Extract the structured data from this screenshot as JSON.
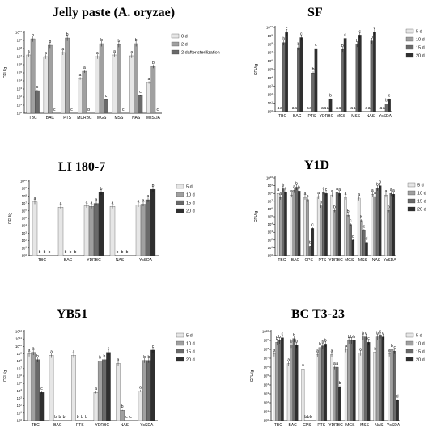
{
  "colors": {
    "d0": "#e6e6e6",
    "d1": "#a0a0a0",
    "d2": "#6a6a6a",
    "d3": "#2f2f2f",
    "axis": "#000000"
  },
  "chart_data": [
    {
      "type": "bar",
      "title": "Jelly paste (A. oryzae)",
      "ylabel": "CFU/g",
      "log_scale": true,
      "ylim_log10": [
        0,
        10
      ],
      "categories": [
        "TBC",
        "BAC",
        "PTS",
        "MDRBC",
        "MGS",
        "MSS",
        "NAS",
        "MsSDA"
      ],
      "legend": [
        "0 d",
        "2 d",
        "2 dafter sterilization"
      ],
      "values_log10": [
        [
          7.2,
          9.2,
          2.8
        ],
        [
          7.0,
          8.4,
          0.0
        ],
        [
          7.5,
          9.3,
          0.0
        ],
        [
          4.3,
          5.2,
          0.0
        ],
        [
          7.0,
          8.6,
          1.7
        ],
        [
          7.2,
          8.5,
          0.0
        ],
        [
          7.1,
          8.6,
          2.2
        ],
        [
          3.8,
          5.8,
          0.0
        ]
      ],
      "letters": [
        [
          "a",
          "b",
          "c"
        ],
        [
          "a",
          "b",
          "c"
        ],
        [
          "a",
          "b",
          "c"
        ],
        [
          "a",
          "a",
          "b"
        ],
        [
          "a",
          "b",
          "c"
        ],
        [
          "a",
          "b",
          "c"
        ],
        [
          "a",
          "b",
          "c"
        ],
        [
          "a",
          "b",
          "c"
        ]
      ]
    },
    {
      "type": "bar",
      "title": "SF",
      "ylabel": "CFU/g",
      "log_scale": true,
      "ylim_log10": [
        0,
        10
      ],
      "categories": [
        "TBC",
        "BAC",
        "PTS",
        "YDRBC",
        "MGS",
        "MSS",
        "NAS",
        "YsSDA"
      ],
      "legend": [
        "5 d",
        "10 d",
        "15 d",
        "20 d"
      ],
      "values_log10": [
        [
          0,
          0,
          8.2,
          9.4
        ],
        [
          0,
          0,
          7.6,
          8.8
        ],
        [
          0,
          0,
          4.6,
          7.5
        ],
        [
          0,
          0,
          0,
          1.5
        ],
        [
          0,
          0,
          7.4,
          8.7
        ],
        [
          0,
          0,
          8.0,
          9.1
        ],
        [
          0,
          0,
          8.4,
          9.5
        ],
        [
          0,
          0,
          0.9,
          1.5
        ]
      ],
      "letters": [
        [
          "a",
          "a",
          "b",
          "c"
        ],
        [
          "a",
          "a",
          "b",
          "c"
        ],
        [
          "a",
          "a",
          "b",
          "c"
        ],
        [
          "a",
          "a",
          "a",
          "b"
        ],
        [
          "a",
          "a",
          "b",
          "c"
        ],
        [
          "a",
          "a",
          "b",
          "c"
        ],
        [
          "a",
          "a",
          "b",
          "c"
        ],
        [
          "a",
          "a",
          "b",
          "c"
        ]
      ]
    },
    {
      "type": "bar",
      "title": "LI 180-7",
      "ylabel": "CFU/g",
      "log_scale": true,
      "ylim_log10": [
        0,
        10
      ],
      "categories": [
        "TBC",
        "BAC",
        "YDRBC",
        "NAS",
        "YsSDA"
      ],
      "legend": [
        "5 d",
        "10 d",
        "15 d",
        "20 d"
      ],
      "values_log10": [
        [
          7.2,
          0,
          0,
          0
        ],
        [
          6.5,
          0,
          0,
          0
        ],
        [
          6.7,
          6.6,
          7.0,
          8.5
        ],
        [
          6.6,
          0,
          0,
          0
        ],
        [
          6.8,
          6.9,
          7.5,
          8.9
        ]
      ],
      "letters": [
        [
          "a",
          "b",
          "b",
          "b"
        ],
        [
          "a",
          "b",
          "b",
          "b"
        ],
        [
          "a",
          "a",
          "a",
          "b"
        ],
        [
          "a",
          "b",
          "b",
          "b"
        ],
        [
          "a",
          "a",
          "a",
          "b"
        ]
      ]
    },
    {
      "type": "bar",
      "title": "Y1D",
      "ylabel": "CFU/g",
      "log_scale": true,
      "ylim_log10": [
        0,
        10
      ],
      "categories": [
        "TBC",
        "BAC",
        "CPS",
        "PTS",
        "YDRBC",
        "MGS",
        "MSS",
        "NAS",
        "YsSDA"
      ],
      "legend": [
        "5 d",
        "10 d",
        "15 d",
        "20 d"
      ],
      "values_log10": [
        [
          8.0,
          7.5,
          8.6,
          8.2
        ],
        [
          7.8,
          8.4,
          8.8,
          8.3
        ],
        [
          7.5,
          7.2,
          1.2,
          3.5
        ],
        [
          7.6,
          6.4,
          8.2,
          8.0
        ],
        [
          7.8,
          5.8,
          8.1,
          8.0
        ],
        [
          7.5,
          5.2,
          4.0,
          2.0
        ],
        [
          7.4,
          4.5,
          3.3,
          1.7
        ],
        [
          7.9,
          7.6,
          8.7,
          9.0
        ],
        [
          7.8,
          5.8,
          8.0,
          7.9
        ]
      ],
      "letters": [
        [
          "a",
          "a",
          "b",
          "c"
        ],
        [
          "a",
          "a",
          "b",
          "b"
        ],
        [
          "a",
          "a",
          "b",
          "c"
        ],
        [
          "a",
          "b",
          "c",
          "c"
        ],
        [
          "a",
          "b",
          "a",
          "a"
        ],
        [
          "a",
          "b",
          "c",
          "d"
        ],
        [
          "a",
          "b",
          "c",
          "d"
        ],
        [
          "a",
          "a",
          "b",
          "b"
        ],
        [
          "a",
          "b",
          "a",
          "a"
        ]
      ]
    },
    {
      "type": "bar",
      "title": "YB51",
      "ylabel": "CFU/g",
      "log_scale": true,
      "ylim_log10": [
        0,
        12
      ],
      "categories": [
        "TBC",
        "BAC",
        "PTS",
        "YDRBC",
        "NAS",
        "YsSDA"
      ],
      "legend": [
        "5 d",
        "10 d",
        "15 d",
        "20 d"
      ],
      "values_log10": [
        [
          9.0,
          9.2,
          8.2,
          3.8
        ],
        [
          8.8,
          0,
          0,
          0
        ],
        [
          8.8,
          0,
          0,
          0
        ],
        [
          3.8,
          8.0,
          8.2,
          9.2
        ],
        [
          7.7,
          1.4,
          0,
          0
        ],
        [
          4.0,
          8.1,
          8.1,
          9.5
        ]
      ],
      "letters": [
        [
          "a",
          "a",
          "b",
          "c"
        ],
        [
          "a",
          "b",
          "b",
          "b"
        ],
        [
          "a",
          "b",
          "b",
          "b"
        ],
        [
          "a",
          "b",
          "b",
          "c"
        ],
        [
          "a",
          "b",
          "c",
          "c"
        ],
        [
          "a",
          "b",
          "b",
          "c"
        ]
      ]
    },
    {
      "type": "bar",
      "title": "BC T3-23",
      "ylabel": "CFU/g",
      "log_scale": true,
      "ylim_log10": [
        0,
        10
      ],
      "categories": [
        "TBC",
        "BAC",
        "CPS",
        "PTS",
        "YDRBC",
        "MGS",
        "MSS",
        "NAS",
        "YsSDA"
      ],
      "legend": [
        "5 d",
        "10 d",
        "15 d",
        "20 d"
      ],
      "values_log10": [
        [
          7.5,
          8.8,
          9.0,
          9.3
        ],
        [
          6.4,
          8.5,
          9.2,
          8.5
        ],
        [
          5.8,
          0,
          0,
          0
        ],
        [
          7.4,
          8.2,
          8.4,
          8.6
        ],
        [
          7.4,
          6.0,
          6.0,
          3.8
        ],
        [
          8.0,
          9.0,
          9.0,
          9.0
        ],
        [
          7.6,
          9.4,
          9.4,
          8.8
        ],
        [
          7.7,
          9.4,
          9.6,
          9.4
        ],
        [
          7.5,
          8.0,
          7.8,
          2.3
        ]
      ],
      "letters": [
        [
          "a",
          "b",
          "b",
          "c"
        ],
        [
          "a",
          "b",
          "b",
          "b"
        ],
        [
          "a",
          "b",
          "b",
          "b"
        ],
        [
          "a",
          "b",
          "b",
          "b"
        ],
        [
          "a",
          "a",
          "a",
          "b"
        ],
        [
          "a",
          "b",
          "b",
          "b"
        ],
        [
          "a",
          "b",
          "c",
          "c"
        ],
        [
          "a",
          "b",
          "c",
          "d"
        ],
        [
          "a",
          "b",
          "c",
          "d"
        ]
      ]
    }
  ]
}
